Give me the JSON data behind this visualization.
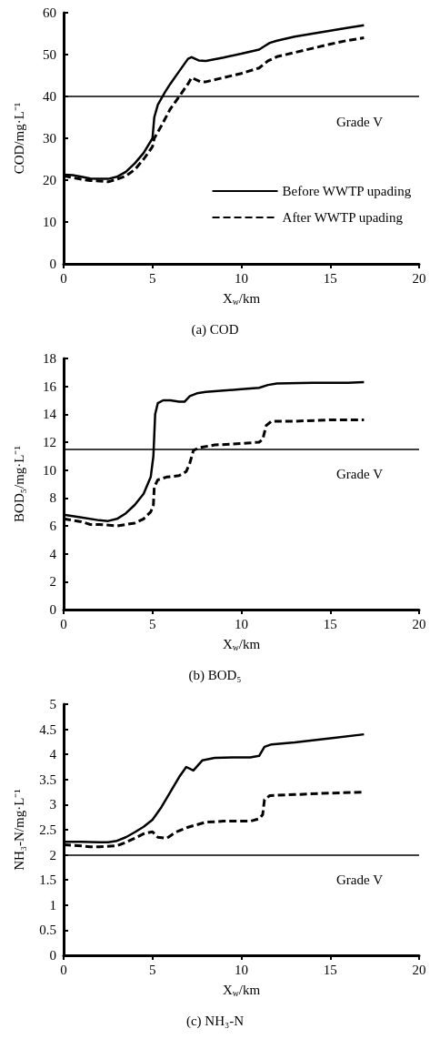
{
  "chart_data": [
    {
      "type": "line",
      "title": "(a) COD",
      "xlabel": "X$_{w}$/km",
      "ylabel": "COD/mg·L⁻¹",
      "xlim": [
        0,
        20
      ],
      "xticks": [
        0,
        5,
        10,
        15,
        20
      ],
      "ylim": [
        0,
        60
      ],
      "yticks": [
        0,
        10,
        20,
        30,
        40,
        50,
        60
      ],
      "grid": false,
      "legend": "right",
      "marker": "none",
      "ref_lines": [
        {
          "axis": "y",
          "value": 40,
          "label": "Grade V",
          "color": "#000000"
        }
      ],
      "series": [
        {
          "name": "Before WWTP upading",
          "color": "#000000",
          "line_style": "solid",
          "x": [
            0,
            0.5,
            1,
            1.5,
            2,
            2.5,
            3,
            3.5,
            4,
            4.5,
            5,
            5.1,
            5.3,
            5.7,
            6,
            6.5,
            7,
            7.2,
            7.6,
            8,
            9,
            10,
            11,
            11.3,
            11.6,
            12,
            13,
            14,
            15,
            16,
            16.9
          ],
          "values": [
            21.3,
            21.2,
            20.8,
            20.4,
            20.3,
            20.3,
            20.8,
            22,
            24,
            26.5,
            30,
            35,
            38,
            41,
            43,
            46,
            49,
            49.4,
            48.6,
            48.5,
            49.3,
            50.2,
            51.2,
            52,
            52.8,
            53.3,
            54.3,
            55,
            55.7,
            56.4,
            57
          ]
        },
        {
          "name": "After WWTP upading",
          "color": "#000000",
          "line_style": "dashed",
          "x": [
            0,
            1,
            1.5,
            2,
            2.5,
            3,
            3.5,
            4,
            4.5,
            5,
            5.1,
            5.5,
            6,
            6.5,
            7,
            7.2,
            7.7,
            8,
            9,
            10,
            11,
            11.5,
            12,
            13,
            14,
            15,
            16,
            16.9
          ],
          "values": [
            21,
            20.2,
            19.9,
            19.8,
            19.6,
            20.2,
            21,
            22.5,
            25,
            28,
            30,
            33,
            37,
            40,
            43,
            44.5,
            43.5,
            43.5,
            44.5,
            45.5,
            46.8,
            48.5,
            49.5,
            50.5,
            51.5,
            52.5,
            53.4,
            54
          ]
        }
      ]
    },
    {
      "type": "line",
      "title": "(b) BOD₅",
      "xlabel": "X$_{w}$/km",
      "ylabel": "BOD₅/mg·L⁻¹",
      "xlim": [
        0,
        20
      ],
      "xticks": [
        0,
        5,
        10,
        15,
        20
      ],
      "ylim": [
        0,
        18
      ],
      "yticks": [
        0,
        2,
        4,
        6,
        8,
        10,
        12,
        14,
        16,
        18
      ],
      "grid": false,
      "marker": "none",
      "ref_lines": [
        {
          "axis": "y",
          "value": 11.5,
          "label": "Grade V",
          "color": "#000000"
        }
      ],
      "series": [
        {
          "color": "#000000",
          "line_style": "solid",
          "x": [
            0,
            1,
            2,
            2.5,
            3,
            3.5,
            4,
            4.5,
            4.9,
            5.05,
            5.15,
            5.3,
            5.6,
            6,
            6.5,
            6.8,
            7.1,
            7.5,
            8,
            9,
            10,
            11,
            11.5,
            12,
            14,
            16,
            16.9
          ],
          "values": [
            6.8,
            6.6,
            6.4,
            6.35,
            6.5,
            6.9,
            7.5,
            8.3,
            9.5,
            11,
            14,
            14.8,
            15,
            15,
            14.9,
            14.9,
            15.3,
            15.5,
            15.6,
            15.7,
            15.8,
            15.9,
            16.1,
            16.2,
            16.25,
            16.25,
            16.3
          ]
        },
        {
          "color": "#000000",
          "line_style": "dashed",
          "x": [
            0,
            1,
            1.5,
            2,
            3,
            4,
            4.5,
            4.9,
            5.05,
            5.1,
            5.3,
            5.8,
            6.5,
            6.9,
            7.1,
            7.3,
            7.6,
            8.5,
            10,
            11,
            11.2,
            11.4,
            11.7,
            13,
            15,
            16.9
          ],
          "values": [
            6.5,
            6.3,
            6.1,
            6.1,
            6.0,
            6.2,
            6.5,
            7.0,
            7.5,
            8.8,
            9.3,
            9.5,
            9.6,
            9.9,
            10.5,
            11.4,
            11.6,
            11.8,
            11.9,
            12.0,
            12.2,
            13.2,
            13.5,
            13.5,
            13.6,
            13.6
          ]
        }
      ]
    },
    {
      "type": "line",
      "title": "(c) NH₃-N",
      "xlabel": "X$_{w}$/km",
      "ylabel": "NH₃-N/mg·L⁻¹",
      "xlim": [
        0,
        20
      ],
      "xticks": [
        0,
        5,
        10,
        15,
        20
      ],
      "ylim": [
        0,
        5
      ],
      "yticks": [
        0,
        0.5,
        1,
        1.5,
        2,
        2.5,
        3,
        3.5,
        4,
        4.5,
        5
      ],
      "grid": false,
      "marker": "none",
      "ref_lines": [
        {
          "axis": "y",
          "value": 2,
          "label": "Grade V",
          "color": "#000000"
        }
      ],
      "series": [
        {
          "color": "#000000",
          "line_style": "solid",
          "x": [
            0,
            1,
            2,
            2.5,
            3,
            3.5,
            4,
            4.5,
            5,
            5.5,
            6,
            6.5,
            6.9,
            7.3,
            7.8,
            8.5,
            9.5,
            10.5,
            11,
            11.3,
            11.7,
            13,
            15,
            16.9
          ],
          "values": [
            2.26,
            2.26,
            2.25,
            2.25,
            2.28,
            2.35,
            2.45,
            2.56,
            2.7,
            2.95,
            3.25,
            3.55,
            3.75,
            3.68,
            3.88,
            3.93,
            3.94,
            3.94,
            3.97,
            4.15,
            4.2,
            4.24,
            4.32,
            4.4
          ]
        },
        {
          "color": "#000000",
          "line_style": "dashed",
          "x": [
            0,
            1,
            1.5,
            2,
            3,
            3.5,
            4,
            4.5,
            5,
            5.3,
            5.8,
            6.3,
            7,
            8,
            9,
            10.5,
            11,
            11.2,
            11.3,
            11.6,
            13,
            15,
            16.9
          ],
          "values": [
            2.2,
            2.18,
            2.16,
            2.16,
            2.18,
            2.25,
            2.33,
            2.42,
            2.46,
            2.35,
            2.33,
            2.45,
            2.55,
            2.65,
            2.67,
            2.67,
            2.72,
            2.8,
            3.1,
            3.18,
            3.2,
            3.23,
            3.25
          ]
        }
      ]
    }
  ]
}
